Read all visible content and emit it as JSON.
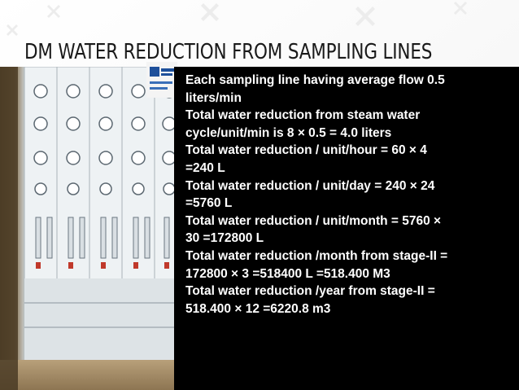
{
  "slide": {
    "title": "DM WATER REDUCTION FROM SAMPLING LINES",
    "lines": [
      "Each sampling line having average flow 0.5",
      "liters/min",
      "Total water reduction from steam water",
      "cycle/unit/min is 8 × 0.5 = 4.0 liters",
      "Total water reduction / unit/hour = 60 × 4",
      "=240 L",
      "Total water reduction / unit/day = 240 × 24",
      "=5760 L",
      "Total water reduction / unit/month = 5760 ×",
      "30 =172800 L",
      "Total water reduction /month from stage-II =",
      "172800 × 3 =518400 L =518.400 M3",
      "Total water reduction /year from stage-II =",
      "518.400 × 12 =6220.8 m3"
    ]
  },
  "colors": {
    "background": "#ffffff",
    "text_panel": "#000000",
    "body_text": "#ffffff",
    "title_text": "#1a1a1a"
  }
}
